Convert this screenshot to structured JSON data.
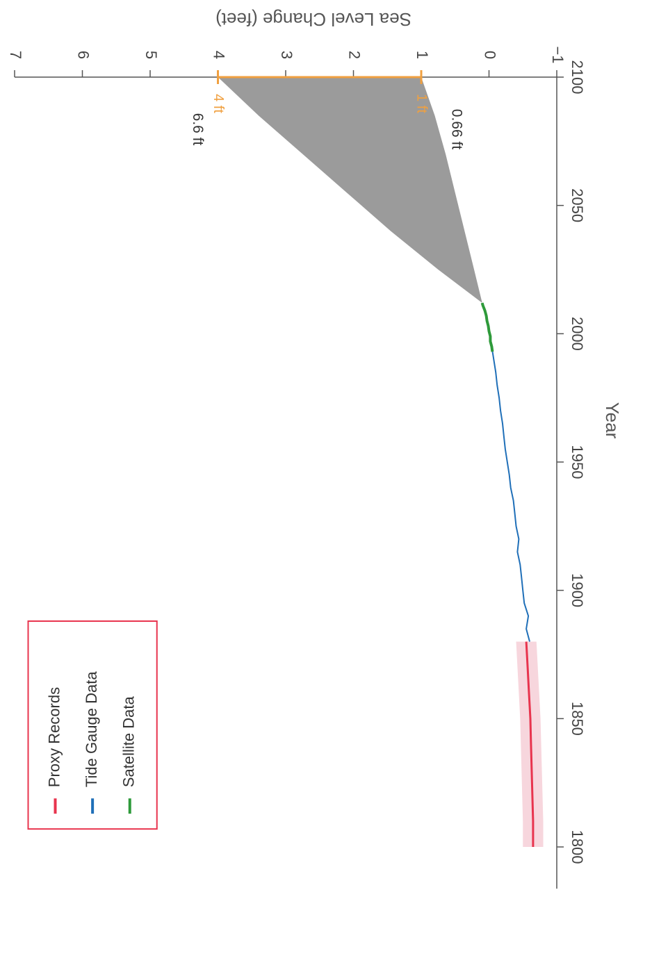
{
  "chart_data": {
    "type": "line",
    "xlabel": "Year",
    "ylabel": "Sea Level Change (feet)",
    "xlim": [
      1800,
      2100
    ],
    "ylim": [
      -1,
      7
    ],
    "x_ticks": [
      1800,
      1850,
      1900,
      1950,
      2000,
      2050,
      2100
    ],
    "y_ticks": [
      -1,
      0,
      1,
      2,
      3,
      4,
      5,
      6,
      7
    ],
    "x_tick_labels": [
      "1800",
      "1850",
      "1900",
      "1950",
      "2000",
      "2050",
      "2100"
    ],
    "y_tick_labels": [
      "−1",
      "0",
      "1",
      "2",
      "3",
      "4",
      "5",
      "6",
      "7"
    ],
    "grid": false,
    "legend_position": "top-left",
    "colors": {
      "proxy": "#e8344e",
      "proxy_band": "#f7d6dd",
      "tide": "#1f6fb8",
      "satellite": "#2e9a3a",
      "projection": "#9b9b9b",
      "range_bar": "#f0a040",
      "axis": "#555555"
    },
    "series": [
      {
        "name": "Proxy Records",
        "x": [
          1800,
          1810,
          1820,
          1830,
          1840,
          1850,
          1860,
          1870,
          1880
        ],
        "y": [
          -0.65,
          -0.65,
          -0.64,
          -0.63,
          -0.62,
          -0.61,
          -0.59,
          -0.57,
          -0.55
        ],
        "band_lower": [
          -0.8,
          -0.8,
          -0.79,
          -0.78,
          -0.77,
          -0.76,
          -0.74,
          -0.72,
          -0.7
        ],
        "band_upper": [
          -0.5,
          -0.5,
          -0.49,
          -0.48,
          -0.47,
          -0.46,
          -0.44,
          -0.42,
          -0.4
        ]
      },
      {
        "name": "Tide Gauge Data",
        "x": [
          1880,
          1885,
          1890,
          1895,
          1900,
          1905,
          1910,
          1915,
          1920,
          1925,
          1930,
          1935,
          1940,
          1945,
          1950,
          1955,
          1960,
          1965,
          1970,
          1975,
          1980,
          1985,
          1990,
          1995,
          2000,
          2005,
          2010
        ],
        "y": [
          -0.6,
          -0.55,
          -0.58,
          -0.52,
          -0.5,
          -0.48,
          -0.46,
          -0.42,
          -0.44,
          -0.4,
          -0.38,
          -0.36,
          -0.32,
          -0.3,
          -0.27,
          -0.24,
          -0.22,
          -0.2,
          -0.17,
          -0.15,
          -0.12,
          -0.1,
          -0.07,
          -0.04,
          -0.01,
          0.03,
          0.07
        ]
      },
      {
        "name": "Satellite Data",
        "x": [
          1993,
          1995,
          1997,
          1999,
          2001,
          2003,
          2005,
          2007,
          2009,
          2011,
          2012
        ],
        "y": [
          -0.05,
          -0.04,
          -0.02,
          -0.02,
          0.0,
          0.01,
          0.03,
          0.04,
          0.06,
          0.09,
          0.1
        ]
      }
    ],
    "projection": {
      "x": [
        2012,
        2025,
        2040,
        2055,
        2070,
        2085,
        2100
      ],
      "lower": [
        0.1,
        0.22,
        0.36,
        0.5,
        0.64,
        0.8,
        1.0
      ],
      "upper": [
        0.1,
        0.75,
        1.45,
        2.1,
        2.75,
        3.4,
        4.0
      ]
    },
    "annotations": {
      "range_high": "4 ft",
      "range_low": "1 ft",
      "upper_value": "6.6 ft",
      "lower_value": "0.66 ft"
    }
  }
}
